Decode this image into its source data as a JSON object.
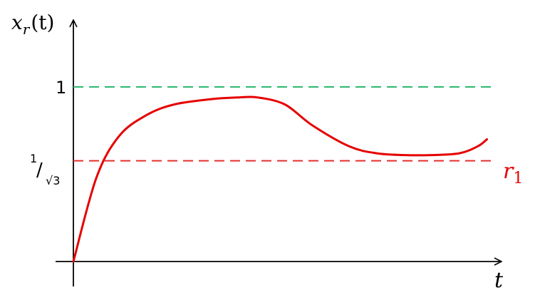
{
  "chart_data": {
    "type": "line",
    "ylabel": {
      "var": "x",
      "sub": "r",
      "arg": "(t)"
    },
    "xlabel": "t",
    "ylim": [
      0,
      1.05
    ],
    "y_ticks": [
      {
        "value": 1,
        "label": "1"
      },
      {
        "value": 0.577,
        "label_num": "1",
        "label_slash": "/",
        "label_den": "√3"
      }
    ],
    "reference_lines": [
      {
        "value": 1,
        "style": "dashed",
        "color": "#2eb872"
      },
      {
        "value": 0.577,
        "style": "dashed",
        "color": "#e62e2e",
        "label_var": "r",
        "label_sub": "1"
      }
    ],
    "series": [
      {
        "color": "#e60000",
        "x": [
          0,
          0.05,
          0.1,
          0.16,
          0.22,
          0.3,
          0.36,
          0.4,
          0.46,
          0.52,
          0.6,
          0.66,
          0.72,
          0.78,
          0.84,
          0.88,
          0.9
        ],
        "y": [
          0,
          0.48,
          0.72,
          0.84,
          0.9,
          0.93,
          0.94,
          0.94,
          0.9,
          0.78,
          0.66,
          0.62,
          0.61,
          0.61,
          0.62,
          0.66,
          0.7
        ]
      }
    ]
  }
}
